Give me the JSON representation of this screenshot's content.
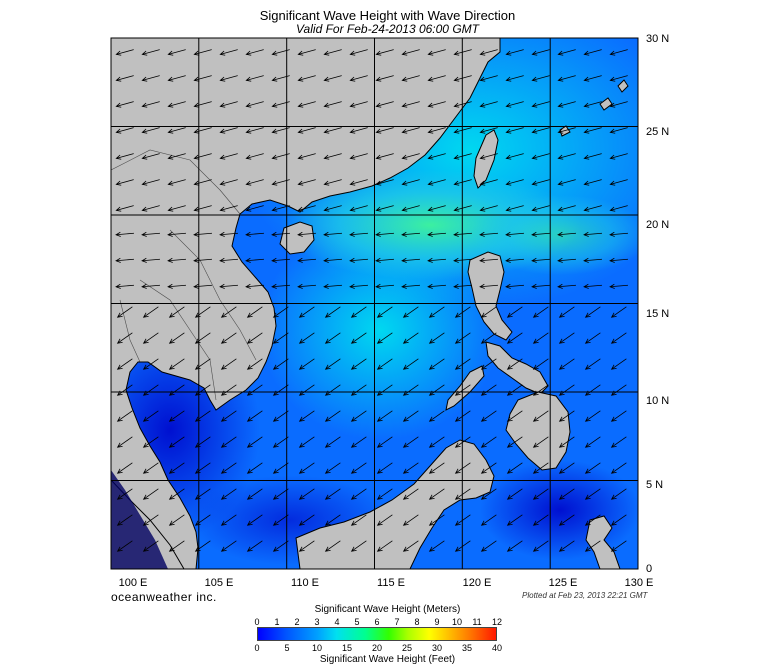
{
  "title": "Significant Wave Height with Wave Direction",
  "subtitle": "Valid For Feb-24-2013 06:00 GMT",
  "x_ticks": [
    "100 E",
    "105 E",
    "110 E",
    "115 E",
    "120 E",
    "125 E",
    "130 E"
  ],
  "y_ticks": [
    "30 N",
    "25 N",
    "20 N",
    "15 N",
    "10 N",
    "5 N",
    "0"
  ],
  "brand": "oceanweather inc.",
  "plotted": "Plotted at Feb 23, 2013 22:21 GMT",
  "colorbar": {
    "title_meters": "Significant Wave Height (Meters)",
    "title_feet": "Significant Wave Height (Feet)",
    "meters": [
      "0",
      "1",
      "2",
      "3",
      "4",
      "5",
      "6",
      "7",
      "8",
      "9",
      "10",
      "11",
      "12"
    ],
    "feet": [
      "0",
      "5",
      "10",
      "15",
      "20",
      "25",
      "30",
      "35",
      "40"
    ]
  },
  "colors": {
    "land": "#c0c0c0",
    "low_wave": "#0030ff",
    "high_wave": "#30f0a0"
  },
  "map": {
    "lon_range": [
      100,
      130
    ],
    "lat_range": [
      0,
      30
    ],
    "grid_step_deg": 5,
    "arrow_direction": "southwest"
  }
}
